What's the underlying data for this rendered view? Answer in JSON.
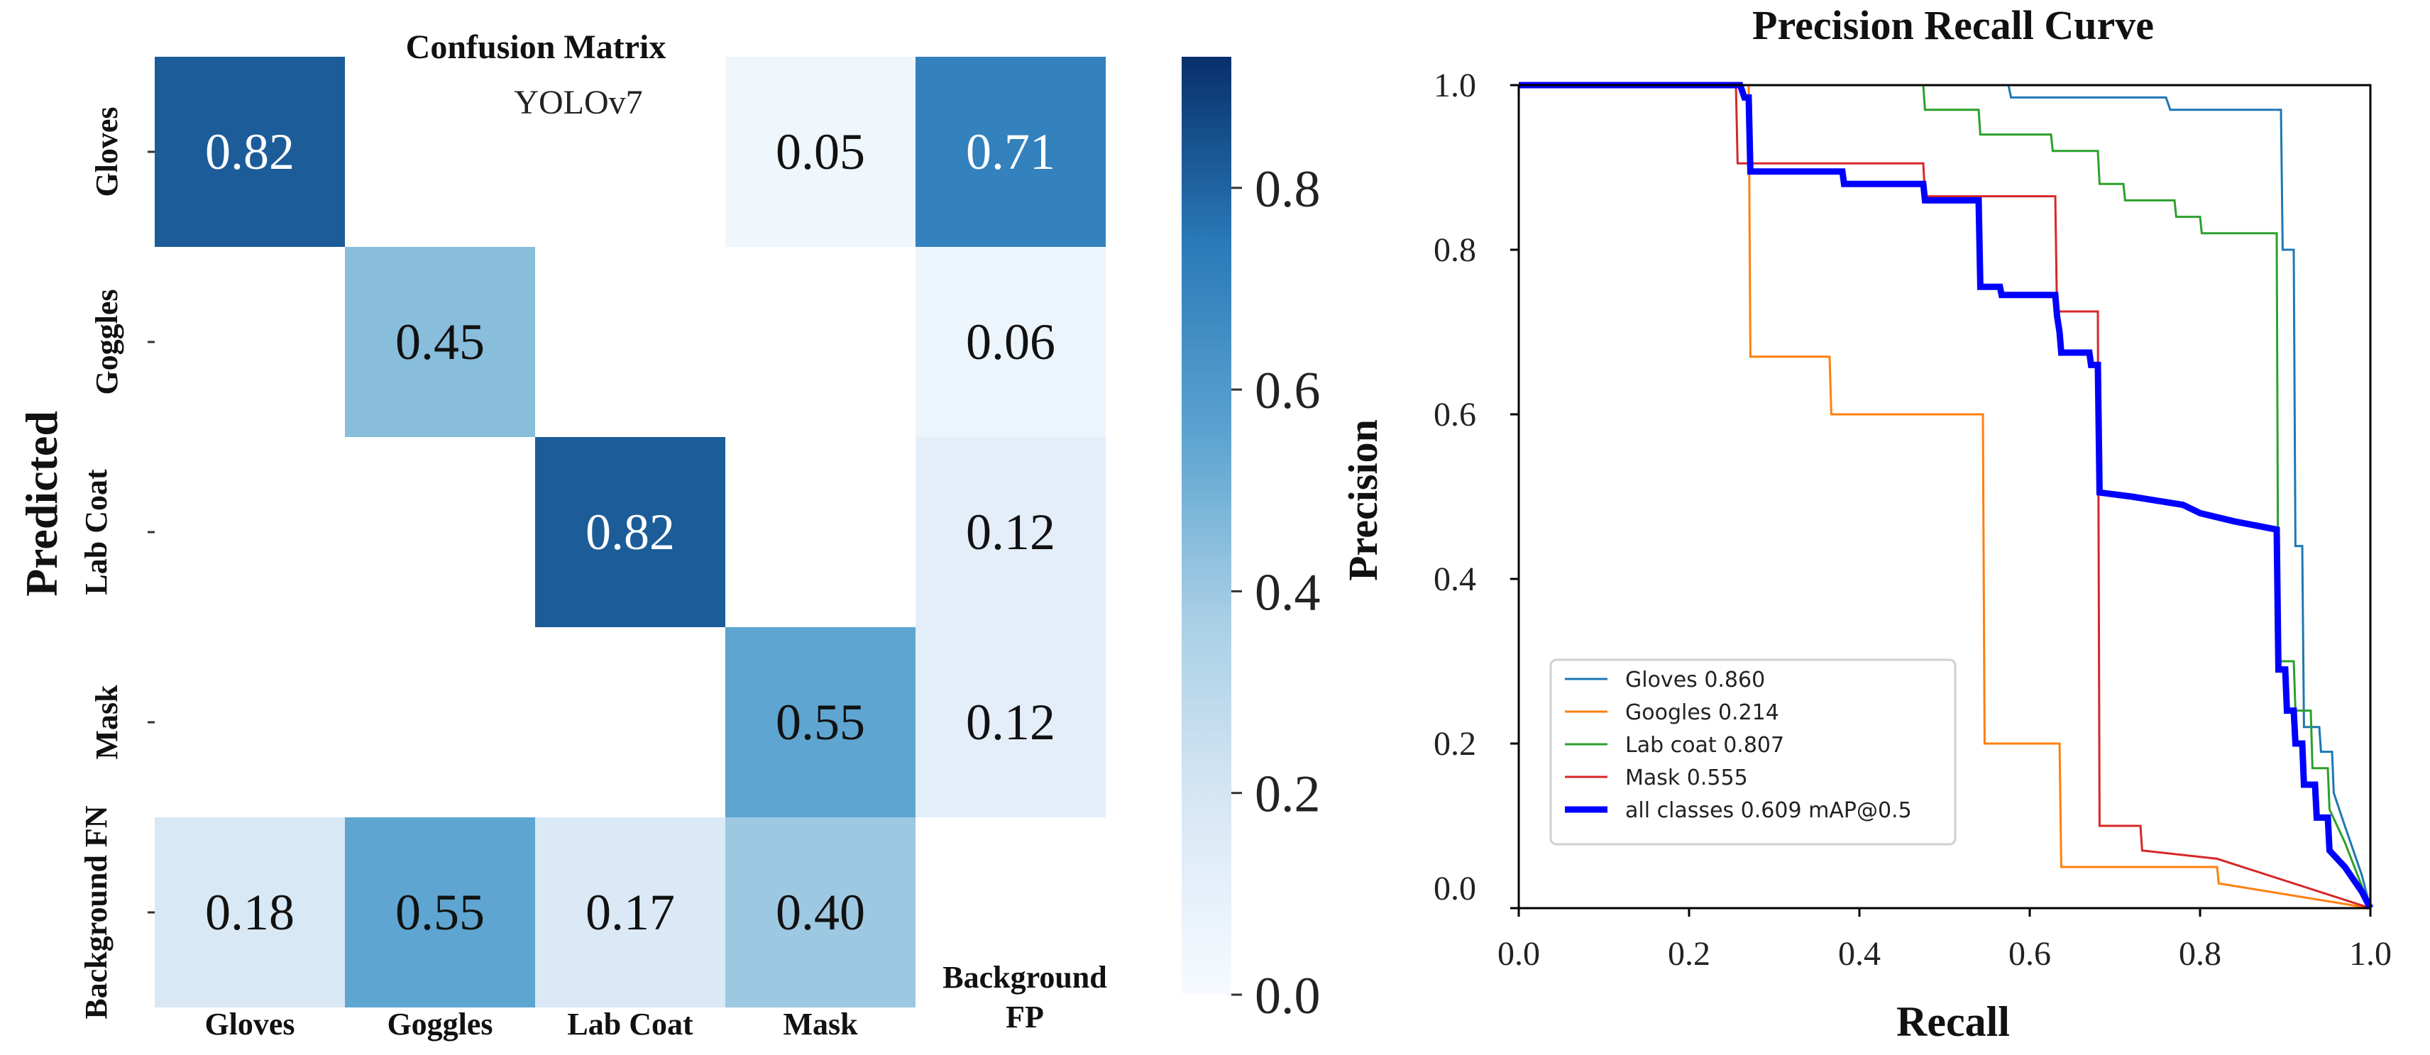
{
  "chart_data": [
    {
      "type": "heatmap",
      "title": "Confusion Matrix",
      "subtitle": "YOLOv7",
      "ylabel": "Predicted",
      "row_labels": [
        "Gloves",
        "Goggles",
        "Lab Coat",
        "Mask",
        "Background FN"
      ],
      "col_labels": [
        "Gloves",
        "Goggles",
        "Lab Coat",
        "Mask",
        "Background FP"
      ],
      "values": [
        [
          0.82,
          null,
          null,
          0.05,
          0.71
        ],
        [
          null,
          0.45,
          null,
          null,
          0.06
        ],
        [
          null,
          null,
          0.82,
          null,
          0.12
        ],
        [
          null,
          null,
          null,
          0.55,
          0.12
        ],
        [
          0.18,
          0.55,
          0.17,
          0.4,
          null
        ]
      ],
      "cell_labels": [
        [
          "0.82",
          "",
          "",
          "0.05",
          "0.71"
        ],
        [
          "",
          "0.45",
          "",
          "",
          "0.06"
        ],
        [
          "",
          "",
          "0.82",
          "",
          "0.12"
        ],
        [
          "",
          "",
          "",
          "0.55",
          "0.12"
        ],
        [
          "0.18",
          "0.55",
          "0.17",
          "0.40",
          ""
        ]
      ],
      "colorbar": {
        "range": [
          0,
          0.93
        ],
        "ticks": [
          0.0,
          0.2,
          0.4,
          0.6,
          0.8
        ],
        "tick_labels": [
          "0.0",
          "0.2",
          "0.4",
          "0.6",
          "0.8"
        ],
        "colormap": "Blues"
      }
    },
    {
      "type": "line",
      "title": "Precision Recall Curve",
      "xlabel": "Recall",
      "ylabel": "Precision",
      "xlim": [
        0,
        1
      ],
      "ylim": [
        0,
        1
      ],
      "xticks": [
        "0.0",
        "0.2",
        "0.4",
        "0.6",
        "0.8",
        "1.0"
      ],
      "yticks": [
        "0.0",
        "0.2",
        "0.4",
        "0.6",
        "0.8",
        "1.0"
      ],
      "legend_position": "lower-left",
      "series": [
        {
          "name": "Gloves 0.860",
          "color": "#1f77b4",
          "bold": false,
          "points": [
            [
              0,
              1
            ],
            [
              0.575,
              1
            ],
            [
              0.578,
              0.985
            ],
            [
              0.76,
              0.985
            ],
            [
              0.765,
              0.97
            ],
            [
              0.895,
              0.97
            ],
            [
              0.897,
              0.8
            ],
            [
              0.91,
              0.8
            ],
            [
              0.912,
              0.44
            ],
            [
              0.92,
              0.44
            ],
            [
              0.922,
              0.22
            ],
            [
              0.94,
              0.22
            ],
            [
              0.942,
              0.19
            ],
            [
              0.955,
              0.19
            ],
            [
              0.957,
              0.14
            ],
            [
              0.97,
              0.1
            ],
            [
              0.99,
              0.04
            ],
            [
              1.0,
              0
            ]
          ]
        },
        {
          "name": "Googles 0.214",
          "color": "#ff7f0e",
          "bold": false,
          "points": [
            [
              0,
              1
            ],
            [
              0.27,
              1
            ],
            [
              0.272,
              0.67
            ],
            [
              0.365,
              0.67
            ],
            [
              0.367,
              0.6
            ],
            [
              0.545,
              0.6
            ],
            [
              0.547,
              0.2
            ],
            [
              0.635,
              0.2
            ],
            [
              0.637,
              0.05
            ],
            [
              0.82,
              0.05
            ],
            [
              0.822,
              0.03
            ],
            [
              1.0,
              0
            ]
          ]
        },
        {
          "name": "Lab coat 0.807",
          "color": "#2ca02c",
          "bold": false,
          "points": [
            [
              0,
              1
            ],
            [
              0.475,
              1
            ],
            [
              0.477,
              0.97
            ],
            [
              0.54,
              0.97
            ],
            [
              0.542,
              0.94
            ],
            [
              0.625,
              0.94
            ],
            [
              0.627,
              0.92
            ],
            [
              0.68,
              0.92
            ],
            [
              0.682,
              0.88
            ],
            [
              0.71,
              0.88
            ],
            [
              0.712,
              0.86
            ],
            [
              0.77,
              0.86
            ],
            [
              0.772,
              0.84
            ],
            [
              0.8,
              0.84
            ],
            [
              0.802,
              0.82
            ],
            [
              0.89,
              0.82
            ],
            [
              0.892,
              0.3
            ],
            [
              0.91,
              0.3
            ],
            [
              0.912,
              0.24
            ],
            [
              0.93,
              0.24
            ],
            [
              0.932,
              0.17
            ],
            [
              0.95,
              0.17
            ],
            [
              0.952,
              0.12
            ],
            [
              0.97,
              0.08
            ],
            [
              1.0,
              0
            ]
          ]
        },
        {
          "name": "Mask 0.555",
          "color": "#d62728",
          "bold": false,
          "points": [
            [
              0,
              1
            ],
            [
              0.255,
              1
            ],
            [
              0.257,
              0.905
            ],
            [
              0.475,
              0.905
            ],
            [
              0.477,
              0.865
            ],
            [
              0.63,
              0.865
            ],
            [
              0.632,
              0.725
            ],
            [
              0.68,
              0.725
            ],
            [
              0.682,
              0.1
            ],
            [
              0.73,
              0.1
            ],
            [
              0.732,
              0.07
            ],
            [
              0.82,
              0.06
            ],
            [
              1.0,
              0
            ]
          ]
        },
        {
          "name": "all classes 0.609 mAP@0.5",
          "color": "#0000ff",
          "bold": true,
          "points": [
            [
              0,
              1
            ],
            [
              0.26,
              1
            ],
            [
              0.265,
              0.985
            ],
            [
              0.27,
              0.985
            ],
            [
              0.272,
              0.895
            ],
            [
              0.38,
              0.895
            ],
            [
              0.382,
              0.88
            ],
            [
              0.475,
              0.88
            ],
            [
              0.477,
              0.86
            ],
            [
              0.54,
              0.86
            ],
            [
              0.542,
              0.755
            ],
            [
              0.565,
              0.755
            ],
            [
              0.567,
              0.745
            ],
            [
              0.63,
              0.745
            ],
            [
              0.632,
              0.72
            ],
            [
              0.635,
              0.7
            ],
            [
              0.637,
              0.675
            ],
            [
              0.67,
              0.675
            ],
            [
              0.672,
              0.66
            ],
            [
              0.68,
              0.66
            ],
            [
              0.682,
              0.505
            ],
            [
              0.72,
              0.5
            ],
            [
              0.75,
              0.495
            ],
            [
              0.78,
              0.49
            ],
            [
              0.8,
              0.48
            ],
            [
              0.84,
              0.47
            ],
            [
              0.89,
              0.46
            ],
            [
              0.892,
              0.29
            ],
            [
              0.9,
              0.29
            ],
            [
              0.902,
              0.24
            ],
            [
              0.91,
              0.24
            ],
            [
              0.912,
              0.2
            ],
            [
              0.92,
              0.2
            ],
            [
              0.922,
              0.15
            ],
            [
              0.935,
              0.15
            ],
            [
              0.937,
              0.11
            ],
            [
              0.95,
              0.11
            ],
            [
              0.952,
              0.07
            ],
            [
              0.97,
              0.05
            ],
            [
              0.99,
              0.02
            ],
            [
              1.0,
              0
            ]
          ]
        }
      ]
    }
  ]
}
